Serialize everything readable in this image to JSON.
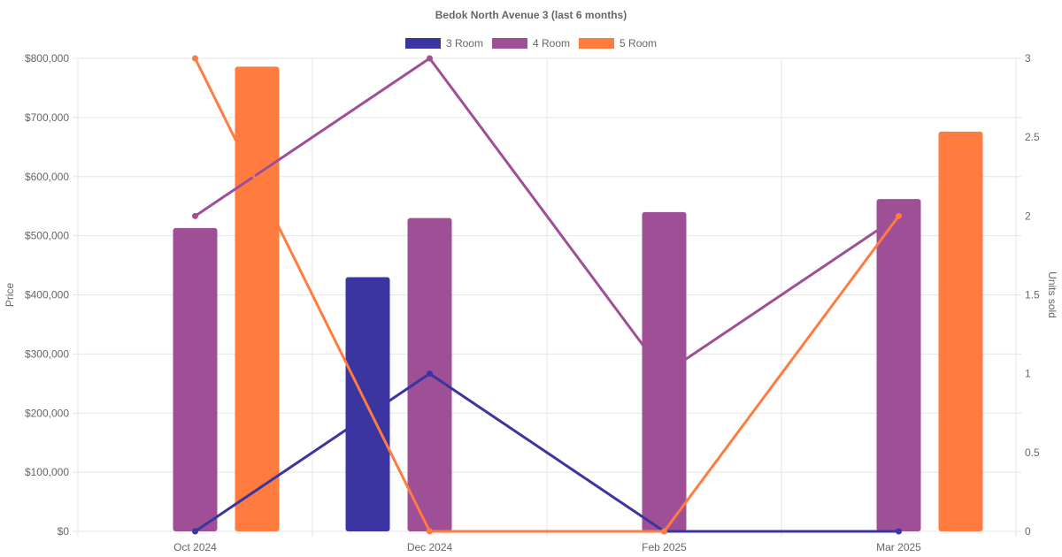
{
  "chart_data": {
    "type": "bar",
    "title": "Bedok North Avenue 3 (last 6 months)",
    "categories": [
      "Oct 2024",
      "Dec 2024",
      "Feb 2025",
      "Mar 2025"
    ],
    "ylabel": "Price",
    "y2label": "Units sold",
    "ylim": [
      0,
      800000
    ],
    "y2lim": [
      0,
      3
    ],
    "yticks": [
      "$0",
      "$100,000",
      "$200,000",
      "$300,000",
      "$400,000",
      "$500,000",
      "$600,000",
      "$700,000",
      "$800,000"
    ],
    "y2ticks": [
      "0",
      "0.5",
      "1",
      "1.5",
      "2",
      "2.5",
      "3"
    ],
    "grid": true,
    "legend_position": "top",
    "series": [
      {
        "name": "3 Room",
        "color": "#3a35a0",
        "price": [
          null,
          430000,
          null,
          null
        ],
        "units": [
          0,
          1,
          0,
          0
        ]
      },
      {
        "name": "4 Room",
        "color": "#9e4f96",
        "price": [
          513000,
          530000,
          540000,
          562000
        ],
        "units": [
          2,
          3,
          1,
          2
        ]
      },
      {
        "name": "5 Room",
        "color": "#ff7b40",
        "price": [
          786000,
          null,
          null,
          676000
        ],
        "units": [
          3,
          0,
          0,
          2
        ]
      }
    ]
  }
}
